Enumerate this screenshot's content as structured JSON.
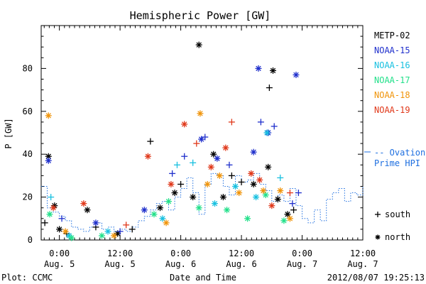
{
  "chart_data": {
    "type": "scatter",
    "title": "Hemispheric Power [GW]",
    "ylabel": "P [GW]",
    "xlabel": "Date and Time",
    "ylim": [
      0,
      100
    ],
    "xlim": [
      -0.15,
      2.5
    ],
    "y_ticks": [
      0,
      20,
      40,
      60,
      80
    ],
    "x_ticks": [
      {
        "x": 0.0,
        "time": "0:00",
        "date": "Aug. 5"
      },
      {
        "x": 0.5,
        "time": "12:00",
        "date": "Aug. 5"
      },
      {
        "x": 1.0,
        "time": "0:00",
        "date": "Aug. 6"
      },
      {
        "x": 1.5,
        "time": "12:00",
        "date": "Aug. 6"
      },
      {
        "x": 2.0,
        "time": "0:00",
        "date": "Aug. 7"
      },
      {
        "x": 2.5,
        "time": "12:00",
        "date": "Aug. 7"
      }
    ],
    "legend_placement": "right",
    "marker_legend": [
      {
        "symbol": "+",
        "label": "south"
      },
      {
        "symbol": "*",
        "label": "north"
      }
    ],
    "series": [
      {
        "name": "METP-02",
        "color": "#000000",
        "points": [
          {
            "x": -0.09,
            "y": 39,
            "m": "*"
          },
          {
            "x": -0.04,
            "y": 16,
            "m": "*"
          },
          {
            "x": -0.12,
            "y": 8,
            "m": "+"
          },
          {
            "x": 0.0,
            "y": 5,
            "m": "*"
          },
          {
            "x": 0.06,
            "y": 3,
            "m": "+"
          },
          {
            "x": 0.23,
            "y": 14,
            "m": "*"
          },
          {
            "x": 0.3,
            "y": 6,
            "m": "+"
          },
          {
            "x": 0.48,
            "y": 3,
            "m": "*"
          },
          {
            "x": 0.6,
            "y": 5,
            "m": "+"
          },
          {
            "x": 0.75,
            "y": 46,
            "m": "+"
          },
          {
            "x": 0.83,
            "y": 15,
            "m": "*"
          },
          {
            "x": 0.95,
            "y": 22,
            "m": "*"
          },
          {
            "x": 1.0,
            "y": 26,
            "m": "+"
          },
          {
            "x": 1.1,
            "y": 20,
            "m": "*"
          },
          {
            "x": 1.15,
            "y": 91,
            "m": "*"
          },
          {
            "x": 1.27,
            "y": 40,
            "m": "*"
          },
          {
            "x": 1.35,
            "y": 20,
            "m": "*"
          },
          {
            "x": 1.42,
            "y": 30,
            "m": "+"
          },
          {
            "x": 1.5,
            "y": 27,
            "m": "+"
          },
          {
            "x": 1.6,
            "y": 26,
            "m": "*"
          },
          {
            "x": 1.72,
            "y": 34,
            "m": "*"
          },
          {
            "x": 1.73,
            "y": 71,
            "m": "+"
          },
          {
            "x": 1.76,
            "y": 79,
            "m": "*"
          },
          {
            "x": 1.8,
            "y": 19,
            "m": "*"
          },
          {
            "x": 1.88,
            "y": 12,
            "m": "*"
          },
          {
            "x": 1.93,
            "y": 14,
            "m": "+"
          }
        ]
      },
      {
        "name": "NOAA-15",
        "color": "#1f2fcc",
        "points": [
          {
            "x": -0.09,
            "y": 37,
            "m": "*"
          },
          {
            "x": 0.02,
            "y": 10,
            "m": "+"
          },
          {
            "x": 0.3,
            "y": 8,
            "m": "*"
          },
          {
            "x": 0.5,
            "y": 4,
            "m": "+"
          },
          {
            "x": 0.7,
            "y": 14,
            "m": "*"
          },
          {
            "x": 0.93,
            "y": 31,
            "m": "+"
          },
          {
            "x": 1.03,
            "y": 39,
            "m": "+"
          },
          {
            "x": 1.17,
            "y": 47,
            "m": "*"
          },
          {
            "x": 1.2,
            "y": 48,
            "m": "+"
          },
          {
            "x": 1.3,
            "y": 38,
            "m": "*"
          },
          {
            "x": 1.4,
            "y": 35,
            "m": "+"
          },
          {
            "x": 1.6,
            "y": 41,
            "m": "*"
          },
          {
            "x": 1.64,
            "y": 80,
            "m": "*"
          },
          {
            "x": 1.66,
            "y": 55,
            "m": "+"
          },
          {
            "x": 1.72,
            "y": 50,
            "m": "*"
          },
          {
            "x": 1.77,
            "y": 53,
            "m": "+"
          },
          {
            "x": 1.92,
            "y": 17,
            "m": "+"
          },
          {
            "x": 1.95,
            "y": 77,
            "m": "*"
          },
          {
            "x": 1.97,
            "y": 22,
            "m": "+"
          }
        ]
      },
      {
        "name": "NOAA-16",
        "color": "#18c0e0",
        "points": [
          {
            "x": -0.07,
            "y": 20,
            "m": "+"
          },
          {
            "x": 0.08,
            "y": 2,
            "m": "*"
          },
          {
            "x": 0.4,
            "y": 4,
            "m": "*"
          },
          {
            "x": 0.85,
            "y": 10,
            "m": "*"
          },
          {
            "x": 0.97,
            "y": 35,
            "m": "+"
          },
          {
            "x": 1.1,
            "y": 36,
            "m": "+"
          },
          {
            "x": 1.28,
            "y": 17,
            "m": "*"
          },
          {
            "x": 1.45,
            "y": 25,
            "m": "*"
          },
          {
            "x": 1.62,
            "y": 20,
            "m": "*"
          },
          {
            "x": 1.71,
            "y": 50,
            "m": "*"
          },
          {
            "x": 1.82,
            "y": 29,
            "m": "+"
          }
        ]
      },
      {
        "name": "NOAA-17",
        "color": "#22e08a",
        "points": [
          {
            "x": -0.08,
            "y": 12,
            "m": "*"
          },
          {
            "x": 0.1,
            "y": 1,
            "m": "*"
          },
          {
            "x": 0.35,
            "y": 2,
            "m": "*"
          },
          {
            "x": 0.78,
            "y": 12,
            "m": "*"
          },
          {
            "x": 0.9,
            "y": 18,
            "m": "*"
          },
          {
            "x": 1.15,
            "y": 15,
            "m": "*"
          },
          {
            "x": 1.38,
            "y": 14,
            "m": "*"
          },
          {
            "x": 1.55,
            "y": 10,
            "m": "*"
          },
          {
            "x": 1.7,
            "y": 21,
            "m": "*"
          },
          {
            "x": 1.85,
            "y": 9,
            "m": "*"
          }
        ]
      },
      {
        "name": "NOAA-18",
        "color": "#f0940a",
        "points": [
          {
            "x": -0.09,
            "y": 58,
            "m": "*"
          },
          {
            "x": 0.05,
            "y": 4,
            "m": "*"
          },
          {
            "x": 0.45,
            "y": 2,
            "m": "*"
          },
          {
            "x": 0.88,
            "y": 8,
            "m": "*"
          },
          {
            "x": 1.16,
            "y": 59,
            "m": "*"
          },
          {
            "x": 1.22,
            "y": 26,
            "m": "*"
          },
          {
            "x": 1.32,
            "y": 30,
            "m": "*"
          },
          {
            "x": 1.48,
            "y": 22,
            "m": "*"
          },
          {
            "x": 1.68,
            "y": 23,
            "m": "*"
          },
          {
            "x": 1.82,
            "y": 23,
            "m": "*"
          },
          {
            "x": 1.9,
            "y": 10,
            "m": "*"
          }
        ]
      },
      {
        "name": "NOAA-19",
        "color": "#e0381a",
        "points": [
          {
            "x": -0.05,
            "y": 15,
            "m": "*"
          },
          {
            "x": 0.2,
            "y": 17,
            "m": "*"
          },
          {
            "x": 0.55,
            "y": 7,
            "m": "+"
          },
          {
            "x": 0.73,
            "y": 39,
            "m": "*"
          },
          {
            "x": 0.92,
            "y": 26,
            "m": "*"
          },
          {
            "x": 1.03,
            "y": 54,
            "m": "*"
          },
          {
            "x": 1.13,
            "y": 45,
            "m": "+"
          },
          {
            "x": 1.25,
            "y": 34,
            "m": "*"
          },
          {
            "x": 1.37,
            "y": 43,
            "m": "*"
          },
          {
            "x": 1.42,
            "y": 55,
            "m": "+"
          },
          {
            "x": 1.58,
            "y": 31,
            "m": "*"
          },
          {
            "x": 1.65,
            "y": 28,
            "m": "*"
          },
          {
            "x": 1.75,
            "y": 16,
            "m": "*"
          },
          {
            "x": 1.9,
            "y": 22,
            "m": "+"
          }
        ]
      }
    ],
    "model_series": {
      "name": "-- Ovation Prime HPI",
      "name_line1": "-- Ovation",
      "name_line2": "Prime HPI",
      "color": "#1e6fe0",
      "points": [
        [
          -0.15,
          25
        ],
        [
          -0.1,
          15
        ],
        [
          -0.05,
          13
        ],
        [
          0.0,
          11
        ],
        [
          0.05,
          9
        ],
        [
          0.1,
          6
        ],
        [
          0.15,
          5
        ],
        [
          0.2,
          4
        ],
        [
          0.25,
          6
        ],
        [
          0.3,
          8
        ],
        [
          0.35,
          5
        ],
        [
          0.4,
          6
        ],
        [
          0.45,
          4
        ],
        [
          0.5,
          5
        ],
        [
          0.55,
          4
        ],
        [
          0.6,
          6
        ],
        [
          0.65,
          9
        ],
        [
          0.7,
          11
        ],
        [
          0.75,
          14
        ],
        [
          0.8,
          17
        ],
        [
          0.85,
          18
        ],
        [
          0.9,
          14
        ],
        [
          0.95,
          20
        ],
        [
          1.0,
          24
        ],
        [
          1.05,
          29
        ],
        [
          1.1,
          22
        ],
        [
          1.15,
          12
        ],
        [
          1.2,
          26
        ],
        [
          1.25,
          31
        ],
        [
          1.3,
          30
        ],
        [
          1.35,
          25
        ],
        [
          1.4,
          21
        ],
        [
          1.45,
          30
        ],
        [
          1.5,
          27
        ],
        [
          1.55,
          28
        ],
        [
          1.6,
          31
        ],
        [
          1.65,
          26
        ],
        [
          1.7,
          23
        ],
        [
          1.75,
          18
        ],
        [
          1.8,
          21
        ],
        [
          1.85,
          18
        ],
        [
          1.9,
          24
        ],
        [
          1.95,
          16
        ],
        [
          2.0,
          10
        ],
        [
          2.05,
          8
        ],
        [
          2.1,
          14
        ],
        [
          2.15,
          9
        ],
        [
          2.2,
          19
        ],
        [
          2.25,
          22
        ],
        [
          2.3,
          24
        ],
        [
          2.35,
          18
        ],
        [
          2.4,
          22
        ],
        [
          2.45,
          21
        ],
        [
          2.5,
          25
        ]
      ]
    }
  },
  "footer": {
    "plot_credit": "Plot: CCMC",
    "timestamp": "2012/08/07 19:25:13"
  }
}
